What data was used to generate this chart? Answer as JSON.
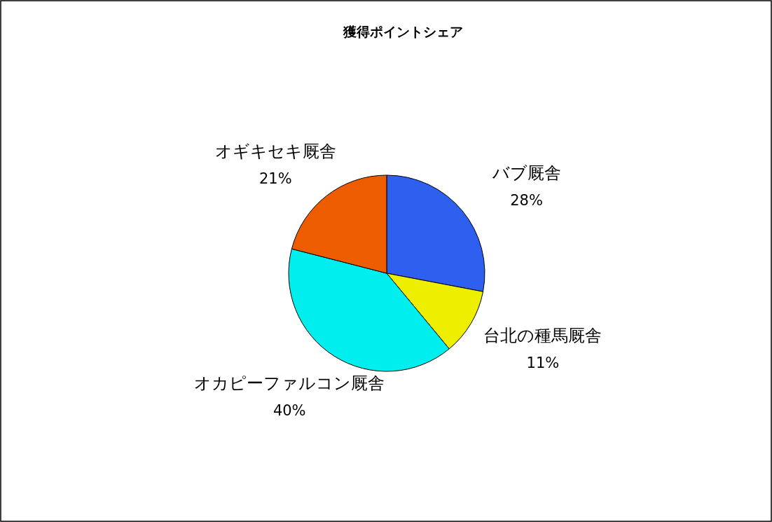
{
  "chart_data": {
    "type": "pie",
    "title": "獲得ポイントシェア",
    "categories": [
      "バブ厩舎",
      "台北の種馬厩舎",
      "オカピーファルコン厩舎",
      "オギキセキ厩舎"
    ],
    "values": [
      28,
      11,
      40,
      21
    ],
    "colors": [
      "#2e5fef",
      "#eeee00",
      "#00eeee",
      "#ee5c00"
    ],
    "value_labels": [
      "28%",
      "11%",
      "40%",
      "21%"
    ],
    "legend": false
  }
}
